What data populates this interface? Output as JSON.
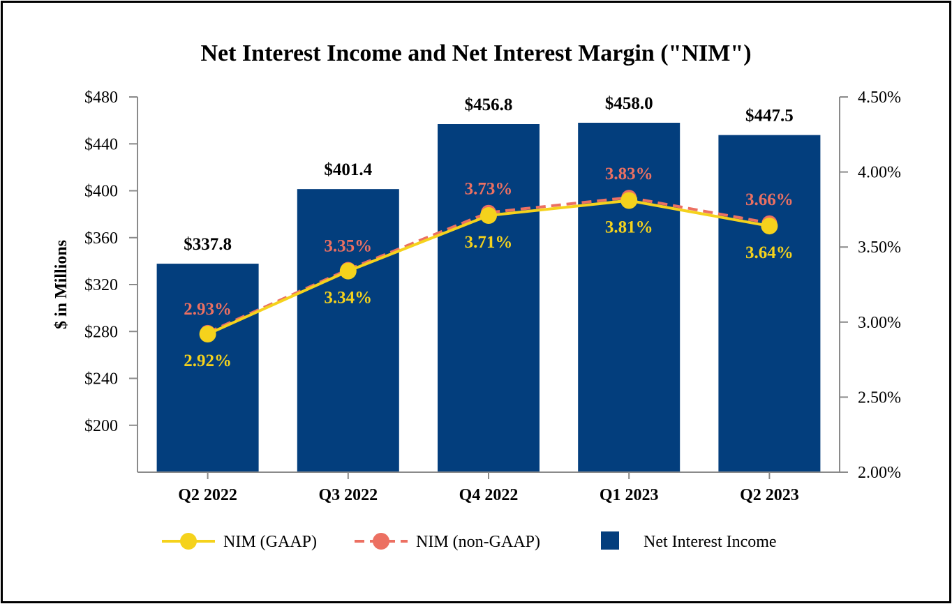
{
  "chart_data": {
    "type": "bar",
    "title": "Net Interest Income and Net Interest Margin (\"NIM\")",
    "categories": [
      "Q2 2022",
      "Q3 2022",
      "Q4 2022",
      "Q1 2023",
      "Q2 2023"
    ],
    "y_left": {
      "label": "$ in Millions",
      "range": [
        160,
        480
      ],
      "ticks": [
        "$200",
        "$240",
        "$280",
        "$320",
        "$360",
        "$400",
        "$440",
        "$480"
      ],
      "tick_values": [
        200,
        240,
        280,
        320,
        360,
        400,
        440,
        480
      ]
    },
    "y_right": {
      "range": [
        2.0,
        4.5
      ],
      "ticks": [
        "2.00%",
        "2.50%",
        "3.00%",
        "3.50%",
        "4.00%",
        "4.50%"
      ],
      "tick_values": [
        2.0,
        2.5,
        3.0,
        3.5,
        4.0,
        4.5
      ]
    },
    "series": [
      {
        "name": "Net Interest Income",
        "type": "bar",
        "axis": "left",
        "color": "#033e7d",
        "values": [
          337.8,
          401.4,
          456.8,
          458.0,
          447.5
        ],
        "labels": [
          "$337.8",
          "$401.4",
          "$456.8",
          "$458.0",
          "$447.5"
        ]
      },
      {
        "name": "NIM (GAAP)",
        "type": "line",
        "axis": "right",
        "color": "#f5d21c",
        "values": [
          2.92,
          3.34,
          3.71,
          3.81,
          3.64
        ],
        "labels": [
          "2.92%",
          "3.34%",
          "3.71%",
          "3.81%",
          "3.64%"
        ]
      },
      {
        "name": "NIM (non-GAAP)",
        "type": "line-dashed",
        "axis": "right",
        "color": "#ec7062",
        "values": [
          2.93,
          3.35,
          3.73,
          3.83,
          3.66
        ],
        "labels": [
          "2.93%",
          "3.35%",
          "3.73%",
          "3.83%",
          "3.66%"
        ]
      }
    ],
    "legend": {
      "placement": "bottom",
      "entries": [
        "NIM (GAAP)",
        "NIM (non-GAAP)",
        "Net Interest Income"
      ]
    }
  }
}
